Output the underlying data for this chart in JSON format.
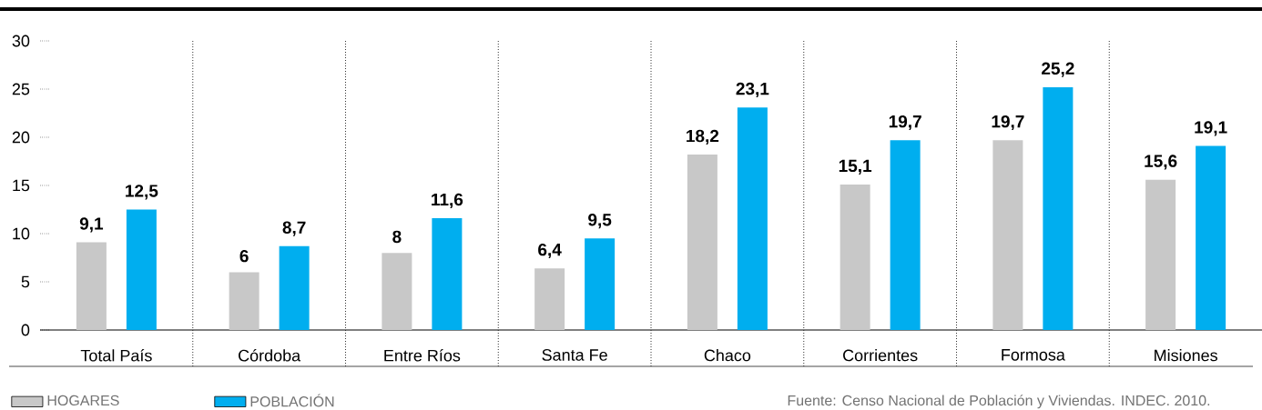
{
  "chart_data": {
    "type": "bar",
    "categories": [
      "Total País",
      "Córdoba",
      "Entre Ríos",
      "Santa Fe",
      "Chaco",
      "Corrientes",
      "Formosa",
      "Misiones"
    ],
    "series": [
      {
        "name": "HOGARES",
        "color": "#c8c8c8",
        "values": [
          9.1,
          6,
          8,
          6.4,
          18.2,
          15.1,
          19.7,
          15.6
        ],
        "value_labels": [
          "9,1",
          "6",
          "8",
          "6,4",
          "18,2",
          "15,1",
          "19,7",
          "15,6"
        ]
      },
      {
        "name": "POBLACIÓN",
        "color": "#00aeef",
        "values": [
          12.5,
          8.7,
          11.6,
          9.5,
          23.1,
          19.7,
          25.2,
          19.1
        ],
        "value_labels": [
          "12,5",
          "8,7",
          "11,6",
          "9,5",
          "23,1",
          "19,7",
          "25,2",
          "19,1"
        ]
      }
    ],
    "ylim": [
      0,
      30
    ],
    "yticks": [
      0,
      5,
      10,
      15,
      20,
      25,
      30
    ],
    "legend": "bottom left",
    "annotations": [
      "Fuente: Censo Nacional de Población y Viviendas. INDEC. 2010."
    ]
  }
}
